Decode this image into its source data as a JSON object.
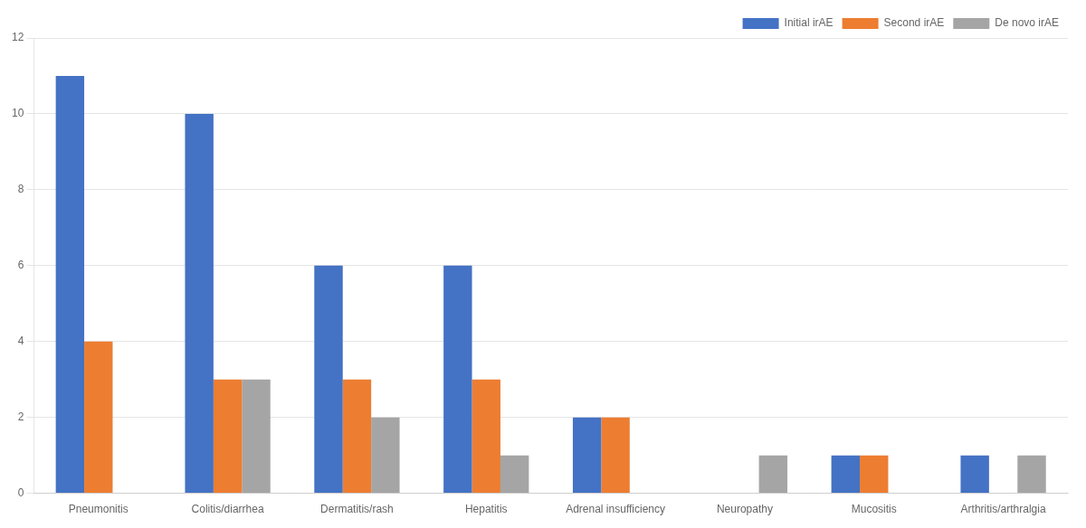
{
  "chart_data": {
    "type": "bar",
    "categories": [
      "Pneumonitis",
      "Colitis/diarrhea",
      "Dermatitis/rash",
      "Hepatitis",
      "Adrenal insufficiency",
      "Neuropathy",
      "Mucositis",
      "Arthritis/arthralgia"
    ],
    "series": [
      {
        "name": "Initial irAE",
        "color": "#4472C4",
        "values": [
          11,
          10,
          6,
          6,
          2,
          0,
          1,
          1
        ]
      },
      {
        "name": "Second irAE",
        "color": "#ED7D31",
        "values": [
          4,
          3,
          3,
          3,
          2,
          0,
          1,
          0
        ]
      },
      {
        "name": "De novo irAE",
        "color": "#A5A5A5",
        "values": [
          0,
          3,
          2,
          1,
          0,
          1,
          0,
          1
        ]
      }
    ],
    "ylim": [
      0,
      12
    ],
    "yticks": [
      0,
      2,
      4,
      6,
      8,
      10,
      12
    ],
    "grid": "y",
    "legend": "upper right"
  }
}
